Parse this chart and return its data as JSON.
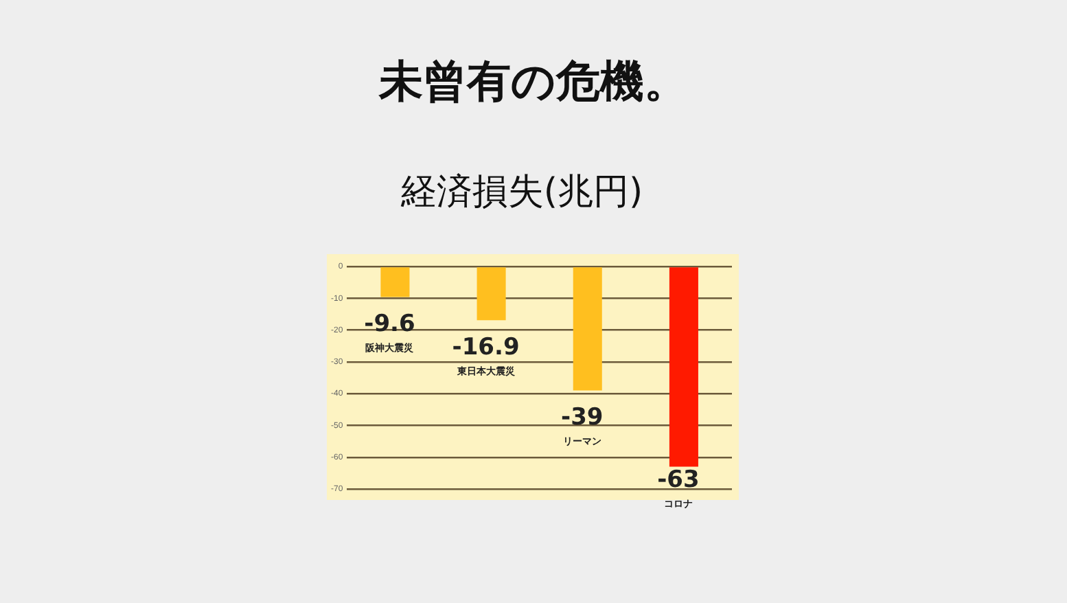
{
  "chart_data": {
    "type": "bar",
    "title": "未曾有の危機。",
    "subtitle": "経済損失(兆円)",
    "categories": [
      "阪神大震災",
      "東日本大震災",
      "リーマン",
      "コロナ"
    ],
    "values": [
      -9.6,
      -16.9,
      -39,
      -63
    ],
    "colors": [
      "#ffbf1f",
      "#ffbf1f",
      "#ffbf1f",
      "#ff1a00"
    ],
    "ylim": [
      -70,
      0
    ],
    "yticks": [
      0,
      -10,
      -20,
      -30,
      -40,
      -50,
      -60,
      -70
    ],
    "grid": "y",
    "data_labels": true,
    "legend": false
  }
}
